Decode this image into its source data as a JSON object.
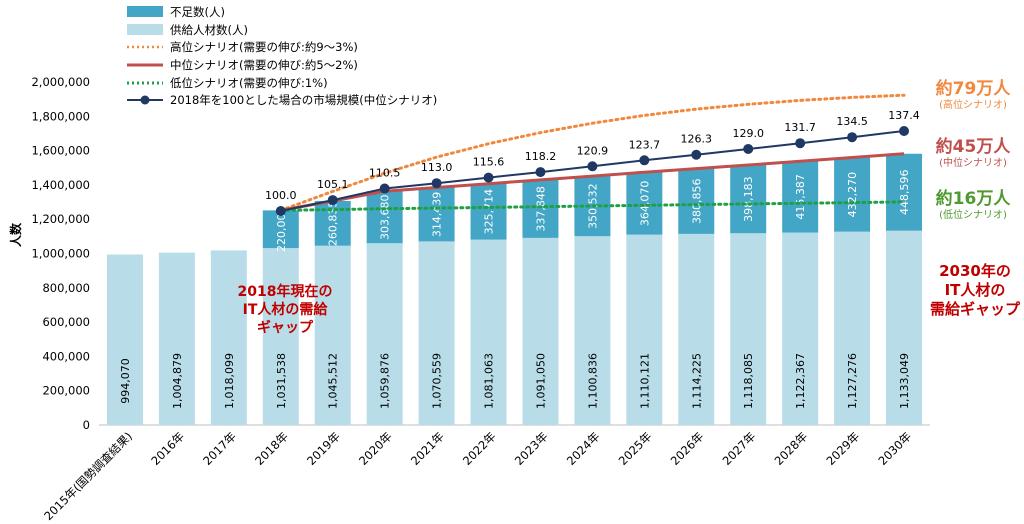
{
  "chart_data": {
    "type": "bar",
    "ylabel": "人数",
    "ylim": [
      0,
      2000000
    ],
    "yticks": [
      "0",
      "200,000",
      "400,000",
      "600,000",
      "800,000",
      "1,000,000",
      "1,200,000",
      "1,400,000",
      "1,600,000",
      "1,800,000",
      "2,000,000"
    ],
    "ytick_values": [
      0,
      200000,
      400000,
      600000,
      800000,
      1000000,
      1200000,
      1400000,
      1600000,
      1800000,
      2000000
    ],
    "categories": [
      "2015年(国勢調査結果)",
      "2016年",
      "2017年",
      "2018年",
      "2019年",
      "2020年",
      "2021年",
      "2022年",
      "2023年",
      "2024年",
      "2025年",
      "2026年",
      "2027年",
      "2028年",
      "2029年",
      "2030年"
    ],
    "grid": false,
    "legend_position": "top-left",
    "series": [
      {
        "name": "供給人材数(人)",
        "kind": "bar-stack-bottom",
        "color": "#b8dde8",
        "values": [
          994070,
          1004879,
          1018099,
          1031538,
          1045512,
          1059876,
          1070559,
          1081063,
          1091050,
          1100836,
          1110121,
          1114225,
          1118085,
          1122367,
          1127276,
          1133049
        ],
        "labels": [
          "994,070",
          "1,004,879",
          "1,018,099",
          "1,031,538",
          "1,045,512",
          "1,059,876",
          "1,070,559",
          "1,081,063",
          "1,091,050",
          "1,100,836",
          "1,110,121",
          "1,114,225",
          "1,118,085",
          "1,122,367",
          "1,127,276",
          "1,133,049"
        ]
      },
      {
        "name": "不足数(人)",
        "kind": "bar-stack-top",
        "color": "#44a6c6",
        "values": [
          null,
          null,
          null,
          220000,
          260835,
          303680,
          314439,
          325714,
          337848,
          350532,
          364070,
          380856,
          398183,
          415387,
          432270,
          448596
        ],
        "labels": [
          "",
          "",
          "",
          "220,000",
          "260,835",
          "303,680",
          "314,439",
          "325,714",
          "337,848",
          "350,532",
          "364,070",
          "380,856",
          "398,183",
          "415,387",
          "432,270",
          "448,596"
        ]
      },
      {
        "name": "高位シナリオ(需要の伸び:約9〜3%)",
        "kind": "line-dotted",
        "color": "#f0883e",
        "values": [
          null,
          null,
          null,
          1251538,
          1362000,
          1468000,
          1562000,
          1640000,
          1705000,
          1760000,
          1805000,
          1842000,
          1870000,
          1893000,
          1910000,
          1923000
        ]
      },
      {
        "name": "中位シナリオ(需要の伸び:約5〜2%)",
        "kind": "line-solid",
        "color": "#c0504d",
        "values": [
          null,
          null,
          null,
          1251538,
          1306347,
          1363556,
          1384998,
          1406777,
          1428898,
          1451368,
          1474191,
          1495081,
          1516268,
          1537754,
          1559546,
          1581645
        ]
      },
      {
        "name": "低位シナリオ(需要の伸び:1%)",
        "kind": "line-dotted-green",
        "color": "#1fa045",
        "values": [
          null,
          null,
          null,
          1251538,
          1256000,
          1261000,
          1265000,
          1269000,
          1273000,
          1277000,
          1281000,
          1285000,
          1289000,
          1293000,
          1297000,
          1301000
        ]
      },
      {
        "name": "2018年を100とした場合の市場規模(中位シナリオ)",
        "kind": "line-markers",
        "color": "#1f3864",
        "values": [
          null,
          null,
          null,
          100.0,
          105.1,
          110.5,
          113.0,
          115.6,
          118.2,
          120.9,
          123.7,
          126.3,
          129.0,
          131.7,
          134.5,
          137.4
        ],
        "labels": [
          "",
          "",
          "",
          "100.0",
          "105.1",
          "110.5",
          "113.0",
          "115.6",
          "118.2",
          "120.9",
          "123.7",
          "126.3",
          "129.0",
          "131.7",
          "134.5",
          "137.4"
        ]
      }
    ],
    "annotations": [
      {
        "text": "約79万人",
        "subtext": "(高位シナリオ)",
        "color": "#f0883e"
      },
      {
        "text": "約45万人",
        "subtext": "(中位シナリオ)",
        "color": "#c0504d"
      },
      {
        "text": "約16万人",
        "subtext": "(低位シナリオ)",
        "color": "#4e9a2e"
      },
      {
        "lines": [
          "2030年の",
          "IT人材の",
          "需給ギャップ"
        ],
        "color": "#c00000"
      },
      {
        "lines": [
          "2018年現在の",
          "IT人材の需給",
          "ギャップ"
        ],
        "color": "#c00000"
      }
    ]
  }
}
